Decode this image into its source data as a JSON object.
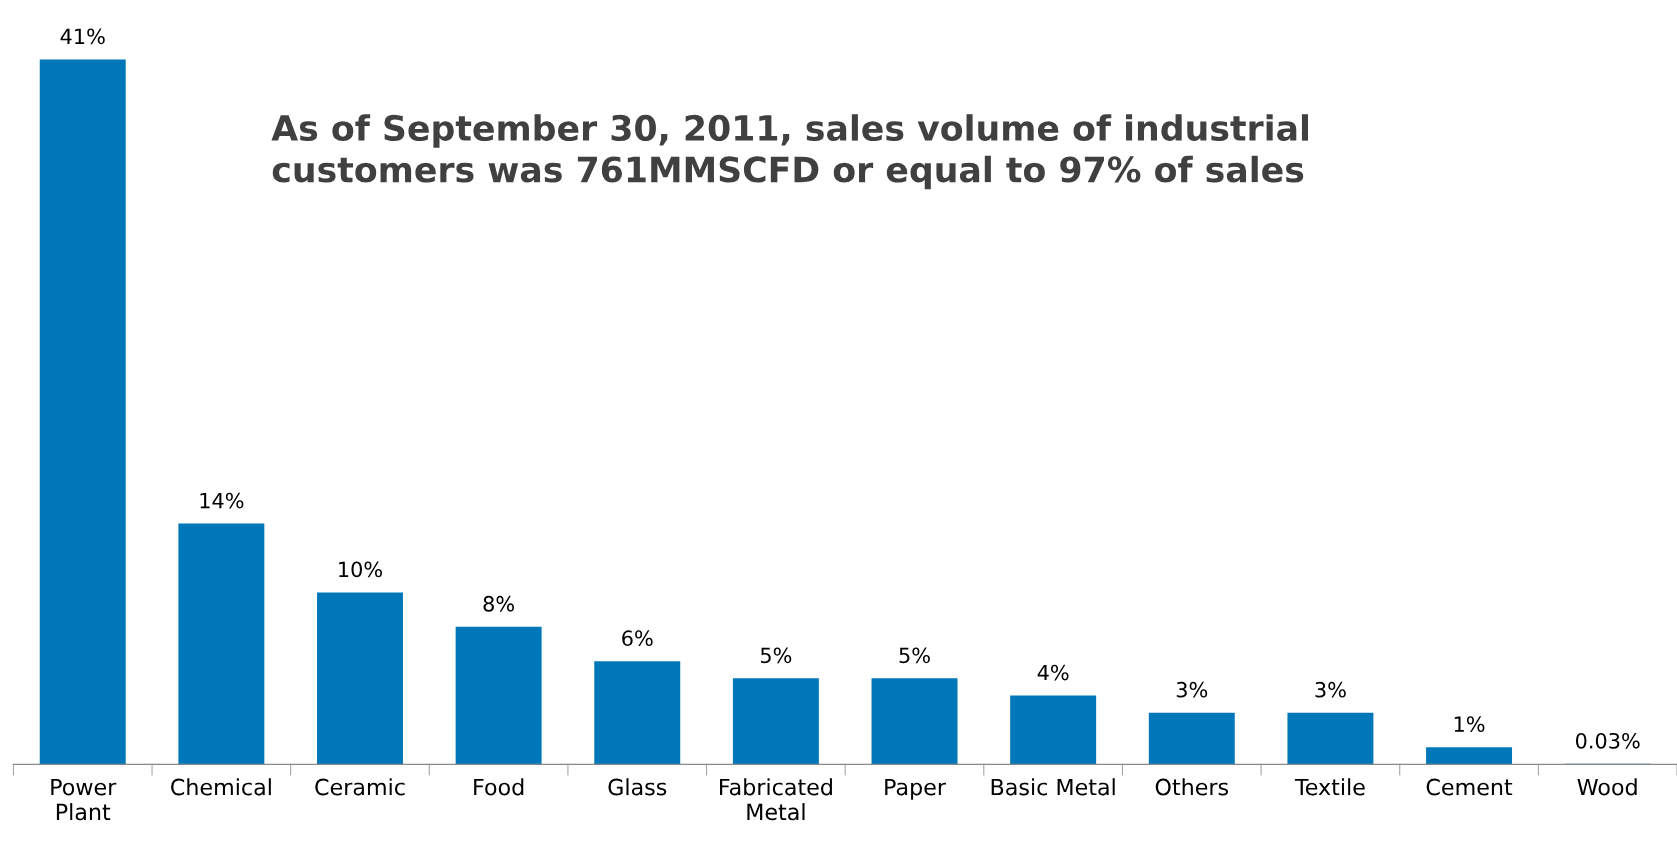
{
  "chart_data": {
    "type": "bar",
    "categories": [
      "Power\nPlant",
      "Chemical",
      "Ceramic",
      "Food",
      "Glass",
      "Fabricated\nMetal",
      "Paper",
      "Basic Metal",
      "Others",
      "Textile",
      "Cement",
      "Wood"
    ],
    "values": [
      41,
      14,
      10,
      8,
      6,
      5,
      5,
      4,
      3,
      3,
      1,
      0.03
    ],
    "value_labels": [
      "41%",
      "14%",
      "10%",
      "8%",
      "6%",
      "5%",
      "5%",
      "4%",
      "3%",
      "3%",
      "1%",
      "0.03%"
    ],
    "color": "#0077b9",
    "annotations": [
      "As of September 30, 2011, sales volume of industrial\ncustomers was 761MMSCFD or equal to 97% of sales"
    ],
    "grid": false,
    "legend": false
  }
}
